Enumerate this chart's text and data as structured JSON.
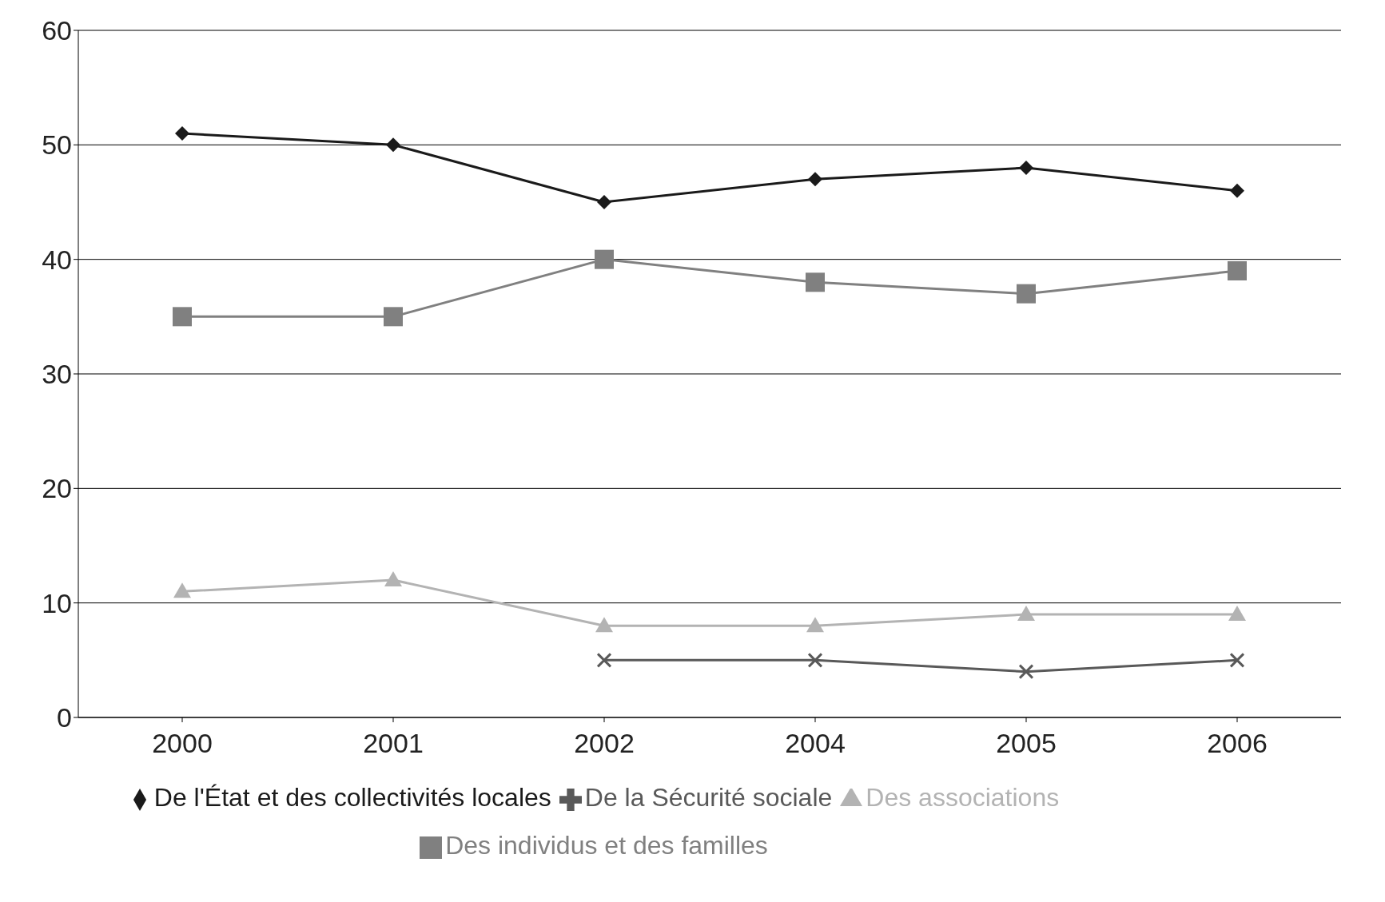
{
  "chart_data": {
    "type": "line",
    "categories": [
      "2000",
      "2001",
      "2002",
      "2004",
      "2005",
      "2006"
    ],
    "series": [
      {
        "name": "De l'État et des collectivités locales",
        "color": "#1a1a1a",
        "marker": "diamond",
        "values": [
          51,
          50,
          45,
          47,
          48,
          46
        ]
      },
      {
        "name": "Des associations",
        "color": "#b3b3b3",
        "marker": "triangle",
        "values": [
          11,
          12,
          8,
          8,
          9,
          9
        ]
      },
      {
        "name": "Des individus et des familles",
        "color": "#808080",
        "marker": "square",
        "values": [
          35,
          35,
          40,
          38,
          37,
          39
        ]
      },
      {
        "name": "De la Sécurité sociale",
        "color": "#595959",
        "marker": "cross",
        "values": [
          null,
          null,
          5,
          5,
          4,
          5
        ]
      }
    ],
    "ylim": [
      0,
      60
    ],
    "yticks": [
      0,
      10,
      20,
      30,
      40,
      50,
      60
    ],
    "grid": "y",
    "legend": "bottom",
    "line_style": "solid"
  }
}
